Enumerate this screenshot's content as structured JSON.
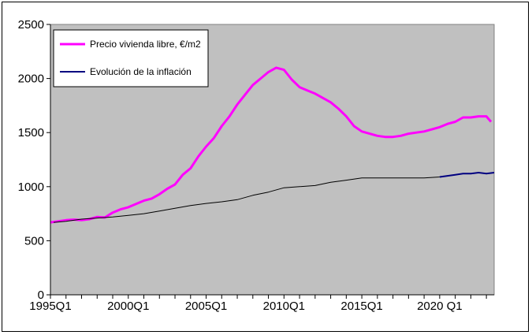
{
  "chart_data": {
    "type": "line",
    "title": "",
    "xlabel": "",
    "ylabel": "",
    "ylim": [
      0,
      2500
    ],
    "yticks": [
      0,
      500,
      1000,
      1500,
      2000,
      2500
    ],
    "xlim": [
      1995.0,
      2021.0
    ],
    "xticks": [
      {
        "x": 1995.0,
        "label": "1995Q1"
      },
      {
        "x": 2000.0,
        "label": "2000Q1"
      },
      {
        "x": 2005.0,
        "label": "2005Q1"
      },
      {
        "x": 2010.0,
        "label": "2010Q1"
      },
      {
        "x": 2015.0,
        "label": "2015Q1"
      },
      {
        "x": 2020.0,
        "label": "2020 Q1"
      }
    ],
    "grid": false,
    "background_color": "#c0c0c0",
    "legend_position": "top-left",
    "series": [
      {
        "name": "Precio vivienda libre, €/m2",
        "color": "#ff00ff",
        "points": [
          [
            1995.0,
            670
          ],
          [
            1995.5,
            680
          ],
          [
            1996.0,
            690
          ],
          [
            1996.5,
            695
          ],
          [
            1997.0,
            690
          ],
          [
            1997.5,
            700
          ],
          [
            1998.0,
            720
          ],
          [
            1998.5,
            715
          ],
          [
            1999.0,
            760
          ],
          [
            1999.5,
            790
          ],
          [
            2000.0,
            810
          ],
          [
            2000.5,
            840
          ],
          [
            2001.0,
            870
          ],
          [
            2001.5,
            890
          ],
          [
            2002.0,
            930
          ],
          [
            2002.5,
            980
          ],
          [
            2003.0,
            1020
          ],
          [
            2003.5,
            1110
          ],
          [
            2004.0,
            1170
          ],
          [
            2004.5,
            1280
          ],
          [
            2005.0,
            1370
          ],
          [
            2005.5,
            1450
          ],
          [
            2006.0,
            1560
          ],
          [
            2006.5,
            1650
          ],
          [
            2007.0,
            1760
          ],
          [
            2007.5,
            1850
          ],
          [
            2008.0,
            1940
          ],
          [
            2008.5,
            2000
          ],
          [
            2009.0,
            2060
          ],
          [
            2009.5,
            2100
          ],
          [
            2010.0,
            2080
          ],
          [
            2010.5,
            1990
          ],
          [
            2011.0,
            1920
          ],
          [
            2011.5,
            1890
          ],
          [
            2012.0,
            1860
          ],
          [
            2012.5,
            1820
          ],
          [
            2013.0,
            1780
          ],
          [
            2013.5,
            1720
          ],
          [
            2014.0,
            1650
          ],
          [
            2014.5,
            1560
          ],
          [
            2015.0,
            1510
          ],
          [
            2015.5,
            1490
          ],
          [
            2016.0,
            1470
          ],
          [
            2016.5,
            1460
          ],
          [
            2017.0,
            1460
          ],
          [
            2017.5,
            1470
          ],
          [
            2018.0,
            1490
          ],
          [
            2018.5,
            1500
          ],
          [
            2019.0,
            1510
          ],
          [
            2019.5,
            1530
          ],
          [
            2020.0,
            1550
          ],
          [
            2020.5,
            1580
          ],
          [
            2021.0,
            1600
          ],
          [
            2021.5,
            1640
          ],
          [
            2022.0,
            1640
          ],
          [
            2022.5,
            1650
          ],
          [
            2023.0,
            1650
          ],
          [
            2023.3,
            1600
          ]
        ]
      },
      {
        "name": "Evolución de la inflación",
        "color": "#000080",
        "points": [
          [
            1995.2,
            670
          ],
          [
            1996.0,
            680
          ],
          [
            1997.0,
            700
          ],
          [
            1998.0,
            710
          ],
          [
            1999.0,
            720
          ],
          [
            2000.0,
            735
          ],
          [
            2001.0,
            750
          ],
          [
            2002.0,
            775
          ],
          [
            2003.0,
            800
          ],
          [
            2004.0,
            825
          ],
          [
            2005.0,
            845
          ],
          [
            2006.0,
            860
          ],
          [
            2007.0,
            880
          ],
          [
            2008.0,
            920
          ],
          [
            2009.0,
            950
          ],
          [
            2010.0,
            990
          ],
          [
            2011.0,
            1000
          ],
          [
            2012.0,
            1010
          ],
          [
            2013.0,
            1040
          ],
          [
            2014.0,
            1060
          ],
          [
            2015.0,
            1080
          ],
          [
            2016.0,
            1080
          ],
          [
            2017.0,
            1080
          ],
          [
            2018.0,
            1080
          ],
          [
            2019.0,
            1080
          ],
          [
            2020.0,
            1090
          ],
          [
            2020.5,
            1100
          ],
          [
            2021.0,
            1110
          ],
          [
            2021.5,
            1120
          ],
          [
            2022.0,
            1120
          ],
          [
            2022.5,
            1130
          ],
          [
            2023.0,
            1120
          ],
          [
            2023.5,
            1130
          ]
        ]
      }
    ]
  }
}
